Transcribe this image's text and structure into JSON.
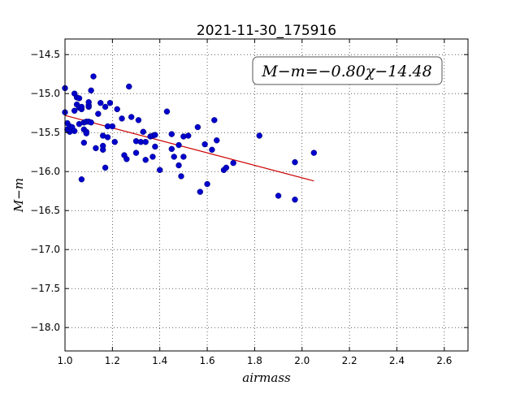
{
  "chart_data": {
    "type": "scatter",
    "title": "2021-11-30_175916",
    "xlabel": "airmass",
    "ylabel": "M−m",
    "xlim": [
      1.0,
      2.7
    ],
    "ylim": [
      -14.3,
      -18.3
    ],
    "y_inverted": true,
    "grid": true,
    "x_ticks": [
      1.0,
      1.2,
      1.4,
      1.6,
      1.8,
      2.0,
      2.2,
      2.4,
      2.6
    ],
    "x_tick_labels": [
      "1.0",
      "1.2",
      "1.4",
      "1.6",
      "1.8",
      "2.0",
      "2.2",
      "2.4",
      "2.6"
    ],
    "y_ticks": [
      -14.5,
      -15.0,
      -15.5,
      -16.0,
      -16.5,
      -17.0,
      -17.5,
      -18.0
    ],
    "y_tick_labels": [
      "−14.5",
      "−15.0",
      "−15.5",
      "−16.0",
      "−16.5",
      "−17.0",
      "−17.5",
      "−18.0"
    ],
    "annotation": "M−m=−0.80χ−14.48",
    "annotation_position": "top-right",
    "fit_line": {
      "slope": -0.8,
      "intercept": -14.48,
      "x_range": [
        1.0,
        2.05
      ],
      "color": "#cc0000"
    },
    "point_color": "#0000cc",
    "points": [
      [
        1.0,
        -14.93
      ],
      [
        1.0,
        -15.24
      ],
      [
        1.01,
        -15.38
      ],
      [
        1.01,
        -15.46
      ],
      [
        1.02,
        -15.42
      ],
      [
        1.02,
        -15.49
      ],
      [
        1.03,
        -15.43
      ],
      [
        1.04,
        -15.0
      ],
      [
        1.04,
        -15.22
      ],
      [
        1.04,
        -15.48
      ],
      [
        1.05,
        -15.05
      ],
      [
        1.05,
        -15.14
      ],
      [
        1.06,
        -15.39
      ],
      [
        1.06,
        -15.06
      ],
      [
        1.06,
        -15.18
      ],
      [
        1.07,
        -15.2
      ],
      [
        1.07,
        -16.1
      ],
      [
        1.07,
        -15.17
      ],
      [
        1.08,
        -15.37
      ],
      [
        1.08,
        -15.63
      ],
      [
        1.08,
        -15.46
      ],
      [
        1.09,
        -15.36
      ],
      [
        1.09,
        -15.49
      ],
      [
        1.09,
        -15.51
      ],
      [
        1.1,
        -15.17
      ],
      [
        1.1,
        -15.36
      ],
      [
        1.1,
        -15.15
      ],
      [
        1.1,
        -15.11
      ],
      [
        1.11,
        -14.96
      ],
      [
        1.11,
        -15.37
      ],
      [
        1.12,
        -14.78
      ],
      [
        1.13,
        -15.7
      ],
      [
        1.14,
        -15.26
      ],
      [
        1.15,
        -15.12
      ],
      [
        1.16,
        -15.54
      ],
      [
        1.16,
        -15.67
      ],
      [
        1.16,
        -15.72
      ],
      [
        1.17,
        -15.95
      ],
      [
        1.17,
        -15.17
      ],
      [
        1.18,
        -15.56
      ],
      [
        1.18,
        -15.42
      ],
      [
        1.19,
        -15.12
      ],
      [
        1.2,
        -15.42
      ],
      [
        1.21,
        -15.62
      ],
      [
        1.22,
        -15.2
      ],
      [
        1.24,
        -15.32
      ],
      [
        1.25,
        -15.79
      ],
      [
        1.26,
        -15.84
      ],
      [
        1.27,
        -14.91
      ],
      [
        1.28,
        -15.3
      ],
      [
        1.3,
        -15.76
      ],
      [
        1.3,
        -15.61
      ],
      [
        1.31,
        -15.34
      ],
      [
        1.32,
        -15.62
      ],
      [
        1.33,
        -15.49
      ],
      [
        1.34,
        -15.85
      ],
      [
        1.34,
        -15.62
      ],
      [
        1.36,
        -15.55
      ],
      [
        1.37,
        -15.54
      ],
      [
        1.37,
        -15.81
      ],
      [
        1.38,
        -15.68
      ],
      [
        1.38,
        -15.53
      ],
      [
        1.4,
        -15.98
      ],
      [
        1.43,
        -15.23
      ],
      [
        1.45,
        -15.52
      ],
      [
        1.45,
        -15.71
      ],
      [
        1.46,
        -15.81
      ],
      [
        1.48,
        -15.66
      ],
      [
        1.48,
        -15.92
      ],
      [
        1.49,
        -16.06
      ],
      [
        1.5,
        -15.55
      ],
      [
        1.5,
        -15.81
      ],
      [
        1.52,
        -15.54
      ],
      [
        1.56,
        -15.43
      ],
      [
        1.57,
        -16.26
      ],
      [
        1.59,
        -15.65
      ],
      [
        1.6,
        -16.16
      ],
      [
        1.62,
        -15.72
      ],
      [
        1.63,
        -15.34
      ],
      [
        1.64,
        -15.6
      ],
      [
        1.67,
        -15.98
      ],
      [
        1.68,
        -15.95
      ],
      [
        1.71,
        -15.89
      ],
      [
        1.82,
        -15.54
      ],
      [
        1.9,
        -16.31
      ],
      [
        1.97,
        -16.36
      ],
      [
        1.97,
        -15.88
      ],
      [
        2.05,
        -15.76
      ]
    ]
  }
}
